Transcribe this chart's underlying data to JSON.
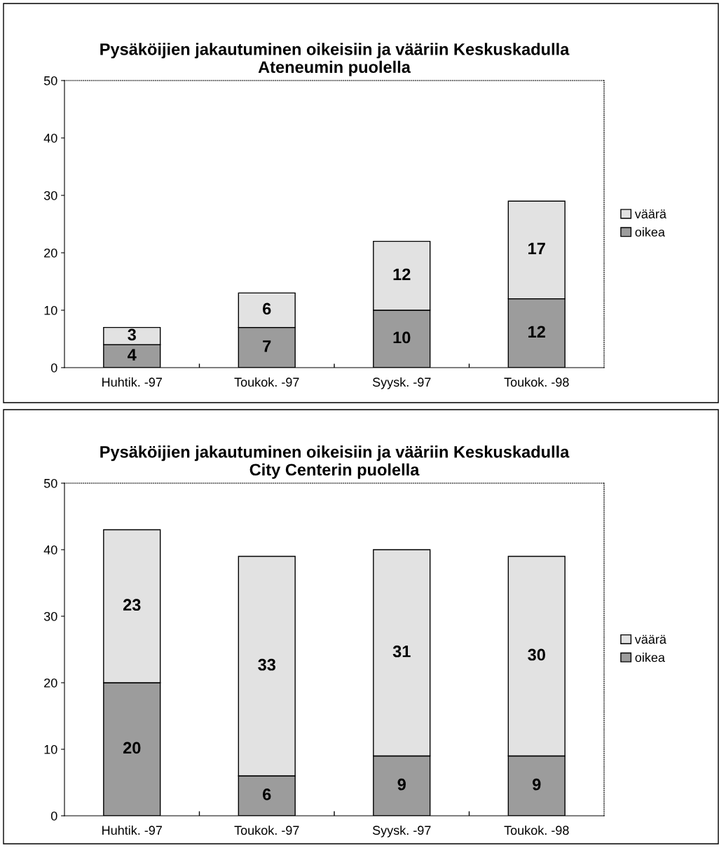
{
  "chart_data": [
    {
      "type": "bar",
      "title": "Pysäköijien jakautuminen oikeisiin ja vääriin Keskuskadulla\nAteneumin puolella",
      "categories": [
        "Huhtik. -97",
        "Toukok. -97",
        "Syysk. -97",
        "Toukok. -98"
      ],
      "stacked": true,
      "data_labels": true,
      "legend": "right",
      "ylim": [
        0,
        50
      ],
      "yticks": [
        0,
        10,
        20,
        30,
        40,
        50
      ],
      "series": [
        {
          "name": "oikea",
          "color": "#9c9c9c",
          "values": [
            4,
            7,
            10,
            12
          ]
        },
        {
          "name": "väärä",
          "color": "#e2e2e2",
          "values": [
            3,
            6,
            12,
            17
          ]
        }
      ]
    },
    {
      "type": "bar",
      "title": "Pysäköijien jakautuminen oikeisiin ja vääriin Keskuskadulla\nCity Centerin puolella",
      "categories": [
        "Huhtik. -97",
        "Toukok. -97",
        "Syysk. -97",
        "Toukok. -98"
      ],
      "stacked": true,
      "data_labels": true,
      "legend": "right",
      "ylim": [
        0,
        50
      ],
      "yticks": [
        0,
        10,
        20,
        30,
        40,
        50
      ],
      "series": [
        {
          "name": "oikea",
          "color": "#9c9c9c",
          "values": [
            20,
            6,
            9,
            9
          ]
        },
        {
          "name": "väärä",
          "color": "#e2e2e2",
          "values": [
            23,
            33,
            31,
            30
          ]
        }
      ]
    }
  ]
}
